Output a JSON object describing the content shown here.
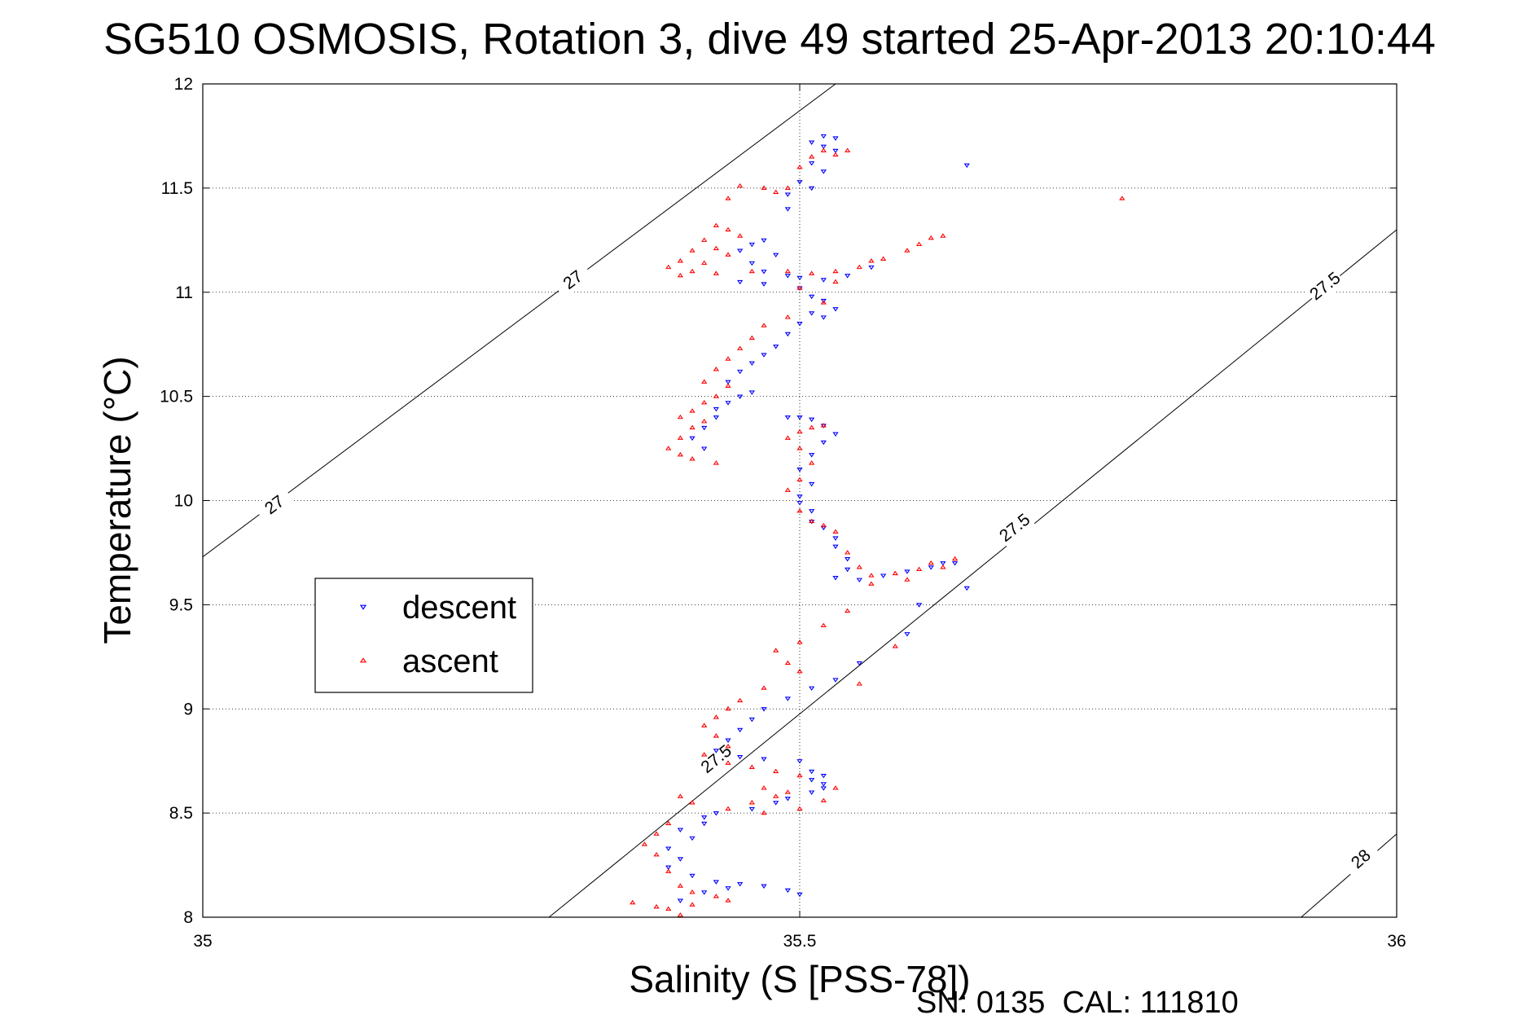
{
  "chart_data": {
    "type": "scatter",
    "title": "SG510 OSMOSIS, Rotation 3, dive 49 started 25-Apr-2013 20:10:44",
    "xlabel": "Salinity (S [PSS-78])",
    "ylabel": "Temperature (°C)",
    "xlim": [
      35,
      36
    ],
    "ylim": [
      8,
      12
    ],
    "xticks": [
      "35",
      "35.5",
      "36"
    ],
    "yticks": [
      "8",
      "8.5",
      "9",
      "9.5",
      "10",
      "10.5",
      "11",
      "11.5",
      "12"
    ],
    "grid": true,
    "legend": {
      "placement": "left",
      "entries": [
        "descent",
        "ascent"
      ]
    },
    "footer": "SN: 0135  CAL: 111810",
    "density_contours": [
      {
        "label": "27",
        "points": [
          [
            35.0,
            9.73
          ],
          [
            35.53,
            12.0
          ]
        ],
        "label_positions": [
          [
            35.06,
            9.98
          ],
          [
            35.31,
            11.06
          ]
        ]
      },
      {
        "label": "27.5",
        "points": [
          [
            35.29,
            8.0
          ],
          [
            36.0,
            11.3
          ]
        ],
        "label_positions": [
          [
            35.43,
            8.76
          ],
          [
            35.68,
            9.87
          ],
          [
            35.94,
            11.03
          ]
        ]
      },
      {
        "label": "28",
        "points": [
          [
            35.92,
            8.0
          ],
          [
            36.0,
            8.4
          ]
        ],
        "label_positions": [
          [
            35.97,
            8.28
          ]
        ]
      }
    ],
    "series": [
      {
        "name": "descent",
        "color": "#0000ff",
        "marker": "triangle-down",
        "points": [
          [
            35.52,
            11.75
          ],
          [
            35.53,
            11.74
          ],
          [
            35.51,
            11.72
          ],
          [
            35.52,
            11.7
          ],
          [
            35.53,
            11.68
          ],
          [
            35.51,
            11.62
          ],
          [
            35.52,
            11.58
          ],
          [
            35.5,
            11.53
          ],
          [
            35.51,
            11.5
          ],
          [
            35.49,
            11.47
          ],
          [
            35.49,
            11.4
          ],
          [
            35.47,
            11.25
          ],
          [
            35.46,
            11.23
          ],
          [
            35.45,
            11.2
          ],
          [
            35.48,
            11.18
          ],
          [
            35.46,
            11.14
          ],
          [
            35.47,
            11.1
          ],
          [
            35.49,
            11.08
          ],
          [
            35.5,
            11.07
          ],
          [
            35.52,
            11.06
          ],
          [
            35.54,
            11.08
          ],
          [
            35.56,
            11.12
          ],
          [
            35.45,
            11.05
          ],
          [
            35.47,
            11.04
          ],
          [
            35.5,
            11.02
          ],
          [
            35.51,
            10.98
          ],
          [
            35.52,
            10.96
          ],
          [
            35.53,
            10.92
          ],
          [
            35.51,
            10.9
          ],
          [
            35.52,
            10.88
          ],
          [
            35.5,
            10.85
          ],
          [
            35.49,
            10.8
          ],
          [
            35.48,
            10.74
          ],
          [
            35.47,
            10.7
          ],
          [
            35.46,
            10.66
          ],
          [
            35.45,
            10.62
          ],
          [
            35.44,
            10.57
          ],
          [
            35.46,
            10.52
          ],
          [
            35.45,
            10.5
          ],
          [
            35.44,
            10.47
          ],
          [
            35.43,
            10.44
          ],
          [
            35.43,
            10.4
          ],
          [
            35.42,
            10.35
          ],
          [
            35.41,
            10.3
          ],
          [
            35.42,
            10.25
          ],
          [
            35.49,
            10.4
          ],
          [
            35.5,
            10.4
          ],
          [
            35.51,
            10.39
          ],
          [
            35.52,
            10.36
          ],
          [
            35.53,
            10.32
          ],
          [
            35.52,
            10.28
          ],
          [
            35.51,
            10.22
          ],
          [
            35.5,
            10.15
          ],
          [
            35.51,
            10.08
          ],
          [
            35.5,
            10.02
          ],
          [
            35.5,
            9.99
          ],
          [
            35.51,
            9.95
          ],
          [
            35.51,
            9.9
          ],
          [
            35.52,
            9.87
          ],
          [
            35.53,
            9.82
          ],
          [
            35.53,
            9.78
          ],
          [
            35.54,
            9.72
          ],
          [
            35.54,
            9.67
          ],
          [
            35.53,
            9.63
          ],
          [
            35.55,
            9.62
          ],
          [
            35.57,
            9.64
          ],
          [
            35.59,
            9.66
          ],
          [
            35.61,
            9.68
          ],
          [
            35.62,
            9.7
          ],
          [
            35.63,
            9.7
          ],
          [
            35.64,
            9.58
          ],
          [
            35.6,
            9.5
          ],
          [
            35.59,
            9.36
          ],
          [
            35.55,
            9.22
          ],
          [
            35.53,
            9.14
          ],
          [
            35.51,
            9.1
          ],
          [
            35.49,
            9.05
          ],
          [
            35.47,
            9.0
          ],
          [
            35.46,
            8.95
          ],
          [
            35.45,
            8.9
          ],
          [
            35.44,
            8.85
          ],
          [
            35.43,
            8.8
          ],
          [
            35.45,
            8.77
          ],
          [
            35.47,
            8.76
          ],
          [
            35.5,
            8.75
          ],
          [
            35.51,
            8.7
          ],
          [
            35.52,
            8.68
          ],
          [
            35.51,
            8.66
          ],
          [
            35.52,
            8.64
          ],
          [
            35.52,
            8.62
          ],
          [
            35.51,
            8.6
          ],
          [
            35.49,
            8.57
          ],
          [
            35.48,
            8.55
          ],
          [
            35.46,
            8.52
          ],
          [
            35.43,
            8.5
          ],
          [
            35.42,
            8.48
          ],
          [
            35.42,
            8.45
          ],
          [
            35.4,
            8.42
          ],
          [
            35.41,
            8.38
          ],
          [
            35.39,
            8.33
          ],
          [
            35.4,
            8.28
          ],
          [
            35.39,
            8.24
          ],
          [
            35.41,
            8.2
          ],
          [
            35.43,
            8.17
          ],
          [
            35.45,
            8.16
          ],
          [
            35.47,
            8.15
          ],
          [
            35.49,
            8.13
          ],
          [
            35.5,
            8.11
          ],
          [
            35.42,
            8.12
          ],
          [
            35.44,
            8.14
          ],
          [
            35.4,
            8.08
          ],
          [
            35.64,
            11.61
          ]
        ]
      },
      {
        "name": "ascent",
        "color": "#ff0000",
        "marker": "triangle-up",
        "points": [
          [
            35.52,
            11.68
          ],
          [
            35.54,
            11.68
          ],
          [
            35.51,
            11.65
          ],
          [
            35.53,
            11.66
          ],
          [
            35.5,
            11.6
          ],
          [
            35.49,
            11.5
          ],
          [
            35.48,
            11.48
          ],
          [
            35.47,
            11.5
          ],
          [
            35.45,
            11.51
          ],
          [
            35.44,
            11.45
          ],
          [
            35.43,
            11.32
          ],
          [
            35.44,
            11.3
          ],
          [
            35.45,
            11.27
          ],
          [
            35.42,
            11.25
          ],
          [
            35.43,
            11.21
          ],
          [
            35.41,
            11.2
          ],
          [
            35.44,
            11.18
          ],
          [
            35.4,
            11.15
          ],
          [
            35.42,
            11.14
          ],
          [
            35.39,
            11.12
          ],
          [
            35.41,
            11.1
          ],
          [
            35.4,
            11.08
          ],
          [
            35.43,
            11.09
          ],
          [
            35.46,
            11.1
          ],
          [
            35.49,
            11.1
          ],
          [
            35.51,
            11.09
          ],
          [
            35.53,
            11.1
          ],
          [
            35.55,
            11.12
          ],
          [
            35.57,
            11.16
          ],
          [
            35.59,
            11.2
          ],
          [
            35.6,
            11.23
          ],
          [
            35.61,
            11.26
          ],
          [
            35.62,
            11.27
          ],
          [
            35.56,
            11.15
          ],
          [
            35.53,
            11.05
          ],
          [
            35.5,
            11.02
          ],
          [
            35.52,
            10.95
          ],
          [
            35.49,
            10.88
          ],
          [
            35.47,
            10.84
          ],
          [
            35.46,
            10.78
          ],
          [
            35.45,
            10.73
          ],
          [
            35.44,
            10.68
          ],
          [
            35.43,
            10.63
          ],
          [
            35.42,
            10.57
          ],
          [
            35.44,
            10.55
          ],
          [
            35.43,
            10.5
          ],
          [
            35.42,
            10.47
          ],
          [
            35.41,
            10.43
          ],
          [
            35.4,
            10.4
          ],
          [
            35.42,
            10.38
          ],
          [
            35.41,
            10.35
          ],
          [
            35.4,
            10.3
          ],
          [
            35.39,
            10.25
          ],
          [
            35.4,
            10.22
          ],
          [
            35.41,
            10.2
          ],
          [
            35.43,
            10.18
          ],
          [
            35.52,
            10.36
          ],
          [
            35.51,
            10.35
          ],
          [
            35.5,
            10.33
          ],
          [
            35.49,
            10.3
          ],
          [
            35.5,
            10.25
          ],
          [
            35.51,
            10.18
          ],
          [
            35.5,
            10.1
          ],
          [
            35.49,
            10.05
          ],
          [
            35.5,
            9.95
          ],
          [
            35.51,
            9.9
          ],
          [
            35.52,
            9.88
          ],
          [
            35.53,
            9.85
          ],
          [
            35.54,
            9.75
          ],
          [
            35.55,
            9.68
          ],
          [
            35.56,
            9.64
          ],
          [
            35.58,
            9.65
          ],
          [
            35.6,
            9.67
          ],
          [
            35.61,
            9.7
          ],
          [
            35.63,
            9.72
          ],
          [
            35.62,
            9.68
          ],
          [
            35.59,
            9.62
          ],
          [
            35.56,
            9.6
          ],
          [
            35.54,
            9.47
          ],
          [
            35.52,
            9.4
          ],
          [
            35.5,
            9.32
          ],
          [
            35.49,
            9.22
          ],
          [
            35.47,
            9.1
          ],
          [
            35.45,
            9.04
          ],
          [
            35.44,
            9.0
          ],
          [
            35.43,
            8.96
          ],
          [
            35.42,
            8.92
          ],
          [
            35.43,
            8.87
          ],
          [
            35.44,
            8.82
          ],
          [
            35.42,
            8.78
          ],
          [
            35.44,
            8.74
          ],
          [
            35.46,
            8.72
          ],
          [
            35.48,
            8.7
          ],
          [
            35.5,
            8.68
          ],
          [
            35.47,
            8.62
          ],
          [
            35.49,
            8.6
          ],
          [
            35.48,
            8.58
          ],
          [
            35.46,
            8.55
          ],
          [
            35.44,
            8.52
          ],
          [
            35.41,
            8.55
          ],
          [
            35.4,
            8.58
          ],
          [
            35.39,
            8.45
          ],
          [
            35.38,
            8.4
          ],
          [
            35.37,
            8.35
          ],
          [
            35.38,
            8.3
          ],
          [
            35.39,
            8.22
          ],
          [
            35.4,
            8.15
          ],
          [
            35.41,
            8.12
          ],
          [
            35.43,
            8.1
          ],
          [
            35.44,
            8.08
          ],
          [
            35.41,
            8.06
          ],
          [
            35.39,
            8.04
          ],
          [
            35.4,
            8.01
          ],
          [
            35.36,
            8.07
          ],
          [
            35.38,
            8.05
          ],
          [
            35.53,
            8.62
          ],
          [
            35.52,
            8.56
          ],
          [
            35.5,
            8.52
          ],
          [
            35.47,
            8.5
          ],
          [
            35.55,
            9.12
          ],
          [
            35.58,
            9.3
          ],
          [
            35.5,
            9.18
          ],
          [
            35.48,
            9.28
          ],
          [
            35.77,
            11.45
          ]
        ]
      }
    ]
  }
}
